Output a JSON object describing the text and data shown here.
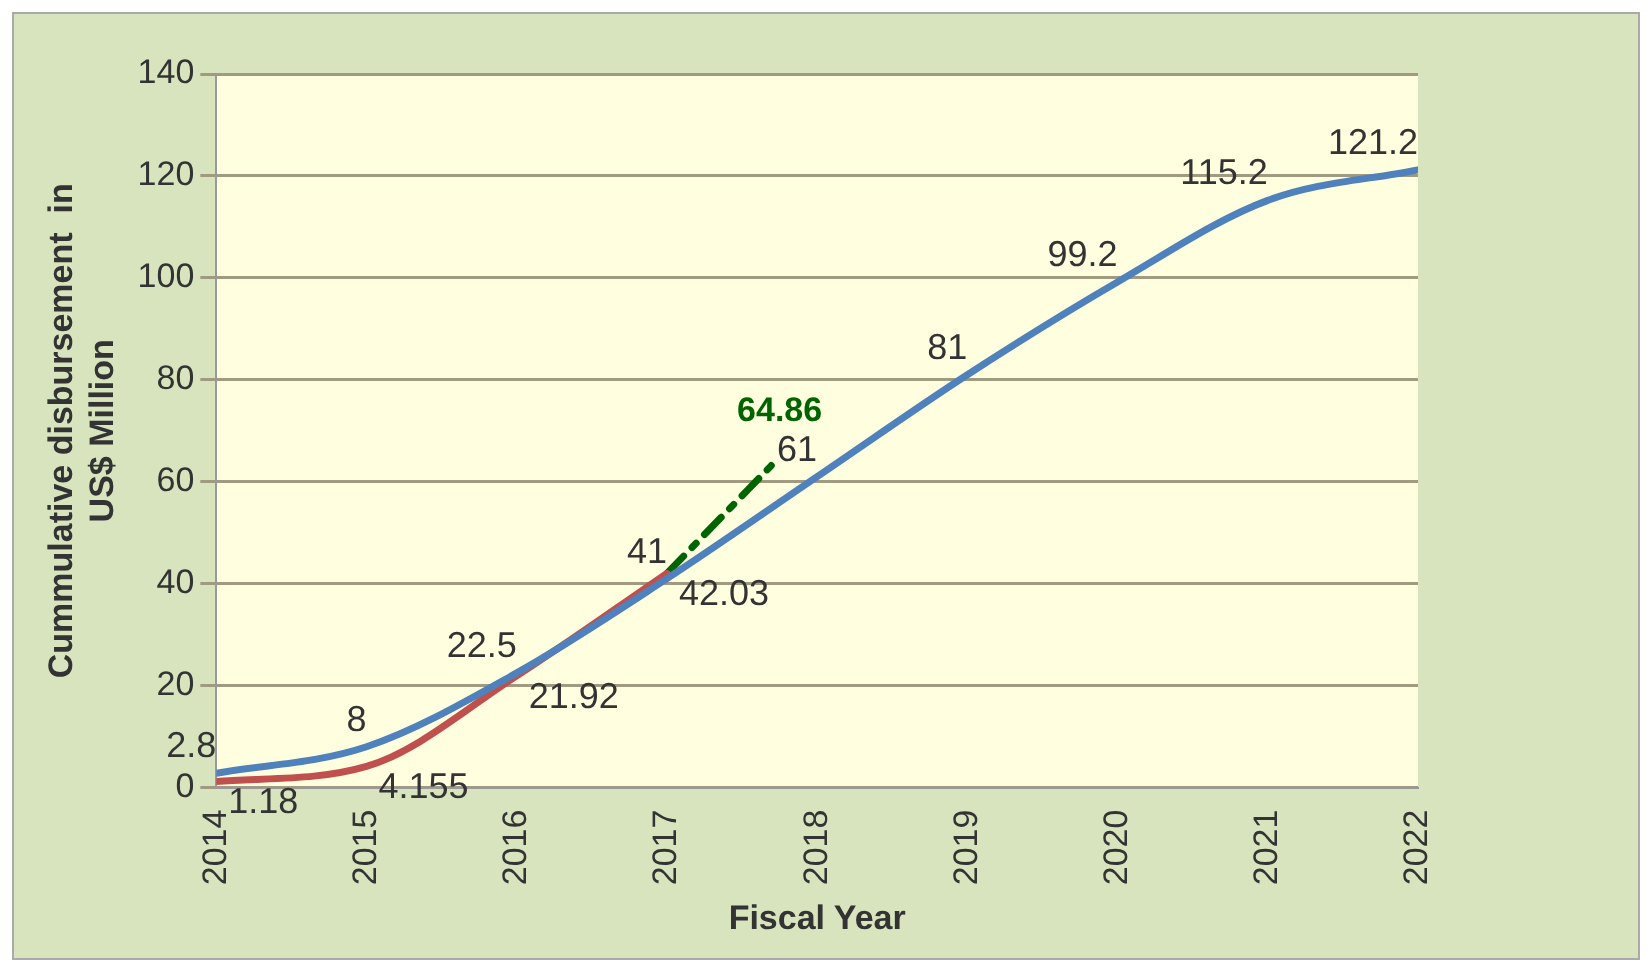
{
  "chart_data": {
    "type": "line",
    "xlabel": "Fiscal Year",
    "ylabel": "Cummulative disbursement  in\nUS$ Million",
    "xlim": [
      2014,
      2022
    ],
    "xticks": [
      2014,
      2015,
      2016,
      2017,
      2018,
      2019,
      2020,
      2021,
      2022
    ],
    "ylim": [
      0,
      140
    ],
    "yticks": [
      0,
      20,
      40,
      60,
      80,
      100,
      120,
      140
    ],
    "grid": "y",
    "legend": false,
    "marker": "none",
    "series": [
      {
        "color": "#4f81bd",
        "x": [
          2014,
          2015,
          2016,
          2017,
          2018,
          2019,
          2020,
          2021,
          2022
        ],
        "values": [
          2.8,
          8,
          22.5,
          41,
          61,
          81,
          99.2,
          115.2,
          121.2
        ],
        "value_labels": [
          "2.8",
          "8",
          "22.5",
          "41",
          "61",
          "81",
          "99.2",
          "115.2",
          "121.2"
        ]
      },
      {
        "color": "#c0504d",
        "x": [
          2014,
          2015,
          2016,
          2017
        ],
        "values": [
          1.18,
          4.155,
          21.92,
          42.03
        ],
        "value_labels": [
          "1.18",
          "4.155",
          "21.92",
          "42.03"
        ]
      },
      {
        "color": "#006400",
        "x": [
          2017,
          2017.75
        ],
        "values": [
          42.03,
          64.86
        ],
        "value_labels": [
          null,
          "64.86"
        ],
        "line_style": "dashed"
      }
    ]
  }
}
